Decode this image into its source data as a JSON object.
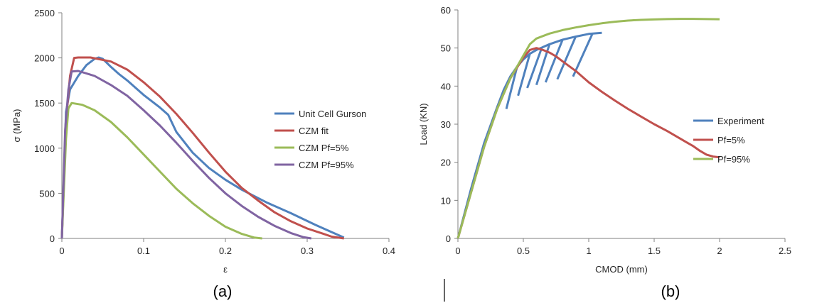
{
  "colors": {
    "blue": "#4F81BD",
    "red": "#C0504D",
    "green": "#9BBB59",
    "purple": "#8064A2",
    "axis": "#808080"
  },
  "panels": {
    "a_label": "(a)",
    "b_label": "(b)"
  },
  "chart_data": [
    {
      "type": "line",
      "xlabel": "ε",
      "ylabel": "σ (MPa)",
      "xlim": [
        0,
        0.4
      ],
      "ylim": [
        0,
        2500
      ],
      "xticks": [
        0,
        0.1,
        0.2,
        0.3,
        0.4
      ],
      "xtick_labels": [
        "0",
        "0.1",
        "0.2",
        "0.3",
        "0.4"
      ],
      "yticks": [
        0,
        500,
        1000,
        1500,
        2000,
        2500
      ],
      "ytick_labels": [
        "0",
        "500",
        "1000",
        "1500",
        "2000",
        "2500"
      ],
      "grid": false,
      "legend": "right",
      "series": [
        {
          "name": "Unit Cell Gurson",
          "color": "#4F81BD",
          "points": [
            [
              0,
              0
            ],
            [
              0.005,
              1400
            ],
            [
              0.01,
              1650
            ],
            [
              0.02,
              1800
            ],
            [
              0.03,
              1920
            ],
            [
              0.04,
              1990
            ],
            [
              0.045,
              2005
            ],
            [
              0.05,
              1990
            ],
            [
              0.06,
              1900
            ],
            [
              0.07,
              1820
            ],
            [
              0.08,
              1750
            ],
            [
              0.1,
              1590
            ],
            [
              0.12,
              1450
            ],
            [
              0.13,
              1370
            ],
            [
              0.14,
              1180
            ],
            [
              0.16,
              950
            ],
            [
              0.18,
              780
            ],
            [
              0.2,
              650
            ],
            [
              0.22,
              540
            ],
            [
              0.25,
              400
            ],
            [
              0.28,
              280
            ],
            [
              0.31,
              150
            ],
            [
              0.33,
              70
            ],
            [
              0.345,
              10
            ]
          ]
        },
        {
          "name": "CZM fit",
          "color": "#C0504D",
          "points": [
            [
              0,
              0
            ],
            [
              0.005,
              1300
            ],
            [
              0.01,
              1800
            ],
            [
              0.015,
              2000
            ],
            [
              0.02,
              2005
            ],
            [
              0.035,
              2005
            ],
            [
              0.06,
              1960
            ],
            [
              0.08,
              1870
            ],
            [
              0.1,
              1730
            ],
            [
              0.12,
              1570
            ],
            [
              0.14,
              1380
            ],
            [
              0.16,
              1170
            ],
            [
              0.18,
              950
            ],
            [
              0.2,
              740
            ],
            [
              0.22,
              560
            ],
            [
              0.24,
              420
            ],
            [
              0.26,
              290
            ],
            [
              0.28,
              190
            ],
            [
              0.3,
              110
            ],
            [
              0.32,
              50
            ],
            [
              0.33,
              20
            ],
            [
              0.345,
              0
            ]
          ]
        },
        {
          "name": "CZM Pf=5%",
          "color": "#9BBB59",
          "points": [
            [
              0,
              0
            ],
            [
              0.005,
              1100
            ],
            [
              0.008,
              1440
            ],
            [
              0.012,
              1500
            ],
            [
              0.025,
              1480
            ],
            [
              0.04,
              1420
            ],
            [
              0.06,
              1290
            ],
            [
              0.08,
              1120
            ],
            [
              0.1,
              930
            ],
            [
              0.12,
              740
            ],
            [
              0.14,
              550
            ],
            [
              0.16,
              390
            ],
            [
              0.18,
              250
            ],
            [
              0.2,
              130
            ],
            [
              0.22,
              50
            ],
            [
              0.235,
              10
            ],
            [
              0.245,
              0
            ]
          ]
        },
        {
          "name": "CZM Pf=95%",
          "color": "#8064A2",
          "points": [
            [
              0,
              0
            ],
            [
              0.004,
              1200
            ],
            [
              0.008,
              1650
            ],
            [
              0.012,
              1850
            ],
            [
              0.02,
              1855
            ],
            [
              0.04,
              1800
            ],
            [
              0.06,
              1700
            ],
            [
              0.08,
              1580
            ],
            [
              0.1,
              1420
            ],
            [
              0.12,
              1250
            ],
            [
              0.14,
              1060
            ],
            [
              0.16,
              860
            ],
            [
              0.18,
              670
            ],
            [
              0.2,
              500
            ],
            [
              0.22,
              360
            ],
            [
              0.24,
              240
            ],
            [
              0.26,
              140
            ],
            [
              0.28,
              60
            ],
            [
              0.295,
              15
            ],
            [
              0.305,
              0
            ]
          ]
        }
      ]
    },
    {
      "type": "line",
      "xlabel": "CMOD (mm)",
      "ylabel": "Load (KN)",
      "xlim": [
        0,
        2.5
      ],
      "ylim": [
        0,
        60
      ],
      "xticks": [
        0,
        0.5,
        1,
        1.5,
        2,
        2.5
      ],
      "xtick_labels": [
        "0",
        "0.5",
        "1",
        "1.5",
        "2",
        "2.5"
      ],
      "yticks": [
        0,
        10,
        20,
        30,
        40,
        50,
        60
      ],
      "ytick_labels": [
        "0",
        "10",
        "20",
        "30",
        "40",
        "50",
        "60"
      ],
      "grid": false,
      "legend": "right",
      "series": [
        {
          "name": "Experiment",
          "color": "#4F81BD",
          "segments": [
            [
              [
                0,
                0
              ],
              [
                0.1,
                13
              ],
              [
                0.2,
                25
              ],
              [
                0.3,
                34.5
              ],
              [
                0.35,
                39
              ],
              [
                0.4,
                42.5
              ],
              [
                0.45,
                45
              ],
              [
                0.5,
                47
              ],
              [
                0.55,
                48.5
              ],
              [
                0.6,
                49.5
              ],
              [
                0.7,
                51
              ],
              [
                0.8,
                52.2
              ],
              [
                0.9,
                53
              ],
              [
                1,
                53.7
              ],
              [
                1.1,
                54
              ]
            ],
            [
              [
                0.37,
                34
              ],
              [
                0.45,
                44.8
              ]
            ],
            [
              [
                0.46,
                37.5
              ],
              [
                0.55,
                48.5
              ]
            ],
            [
              [
                0.53,
                39.5
              ],
              [
                0.64,
                50
              ]
            ],
            [
              [
                0.6,
                40.3
              ],
              [
                0.7,
                51
              ]
            ],
            [
              [
                0.67,
                41
              ],
              [
                0.8,
                52.2
              ]
            ],
            [
              [
                0.76,
                41.8
              ],
              [
                0.9,
                53
              ]
            ],
            [
              [
                0.88,
                42.5
              ],
              [
                1.03,
                53.9
              ]
            ]
          ]
        },
        {
          "name": "Pf=5%",
          "color": "#C0504D",
          "points": [
            [
              0,
              0
            ],
            [
              0.1,
              12
            ],
            [
              0.2,
              24
            ],
            [
              0.3,
              34
            ],
            [
              0.4,
              42
            ],
            [
              0.5,
              47.5
            ],
            [
              0.55,
              49.5
            ],
            [
              0.6,
              50
            ],
            [
              0.65,
              49.5
            ],
            [
              0.7,
              48.8
            ],
            [
              0.75,
              47.8
            ],
            [
              0.8,
              46.5
            ],
            [
              0.9,
              44
            ],
            [
              1,
              41
            ],
            [
              1.1,
              38.5
            ],
            [
              1.2,
              36.2
            ],
            [
              1.3,
              34
            ],
            [
              1.4,
              32
            ],
            [
              1.5,
              30
            ],
            [
              1.6,
              28.2
            ],
            [
              1.7,
              26.2
            ],
            [
              1.75,
              25.2
            ],
            [
              1.8,
              24.2
            ],
            [
              1.85,
              23
            ],
            [
              1.9,
              22
            ],
            [
              1.95,
              21.5
            ],
            [
              2,
              21.3
            ]
          ]
        },
        {
          "name": "Pf=95%",
          "color": "#9BBB59",
          "points": [
            [
              0,
              0
            ],
            [
              0.1,
              12
            ],
            [
              0.2,
              24
            ],
            [
              0.3,
              34
            ],
            [
              0.4,
              42
            ],
            [
              0.5,
              48
            ],
            [
              0.55,
              51
            ],
            [
              0.6,
              52.5
            ],
            [
              0.7,
              53.8
            ],
            [
              0.8,
              54.7
            ],
            [
              0.9,
              55.4
            ],
            [
              1,
              56
            ],
            [
              1.1,
              56.5
            ],
            [
              1.2,
              56.9
            ],
            [
              1.3,
              57.2
            ],
            [
              1.4,
              57.4
            ],
            [
              1.5,
              57.5
            ],
            [
              1.6,
              57.6
            ],
            [
              1.7,
              57.65
            ],
            [
              1.8,
              57.65
            ],
            [
              1.9,
              57.6
            ],
            [
              2,
              57.55
            ]
          ]
        }
      ]
    }
  ]
}
